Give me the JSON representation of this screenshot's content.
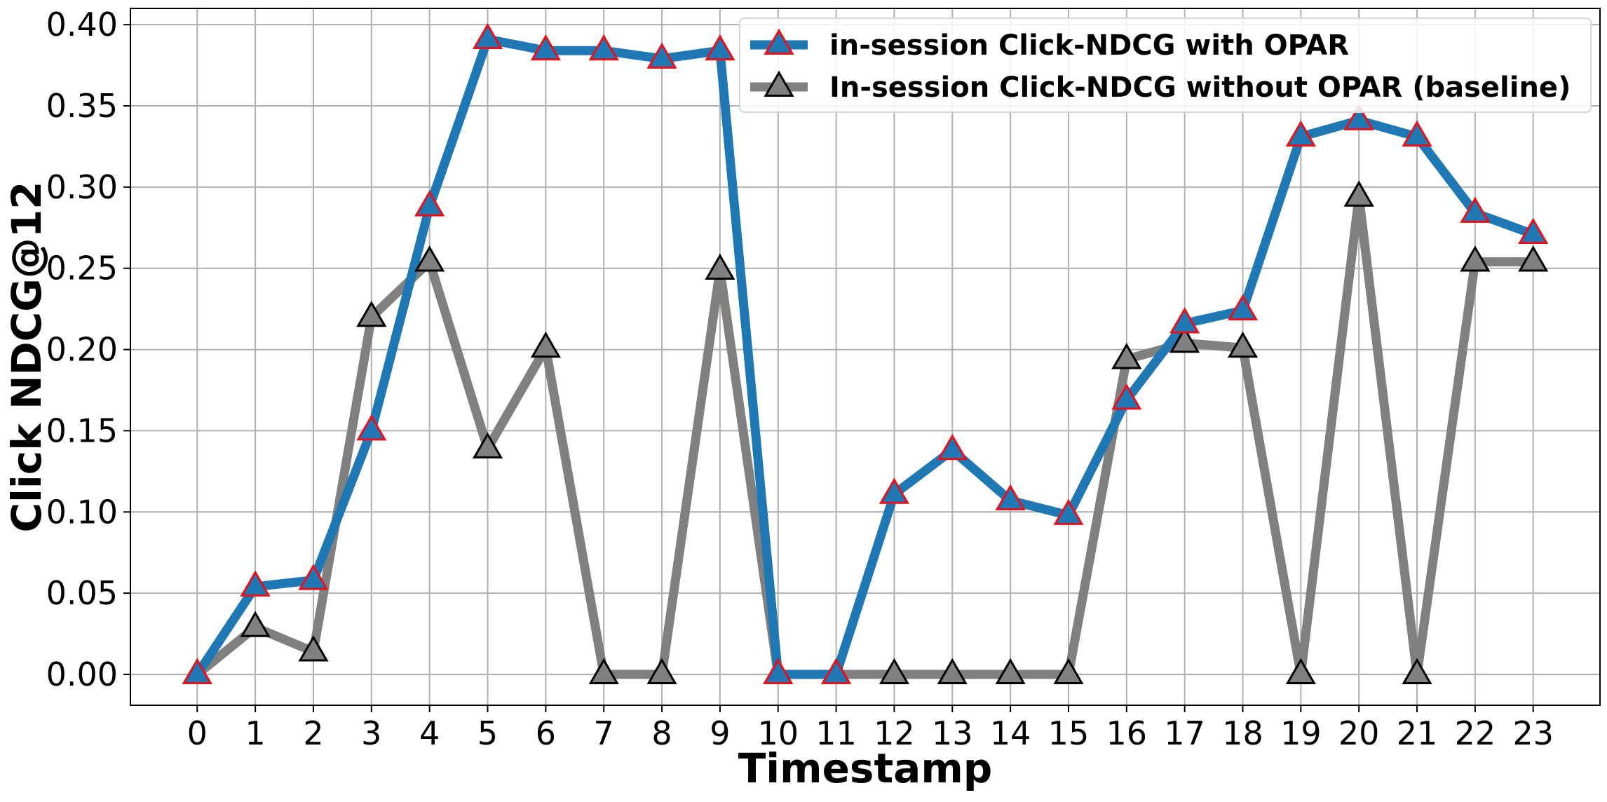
{
  "chart_data": {
    "type": "line",
    "title": "",
    "xlabel": "Timestamp",
    "ylabel": "Click NDCG@12",
    "x": [
      0,
      1,
      2,
      3,
      4,
      5,
      6,
      7,
      8,
      9,
      10,
      11,
      12,
      13,
      14,
      15,
      16,
      17,
      18,
      19,
      20,
      21,
      22,
      23
    ],
    "xticks": [
      "0",
      "1",
      "2",
      "3",
      "4",
      "5",
      "6",
      "7",
      "8",
      "9",
      "10",
      "11",
      "12",
      "13",
      "14",
      "15",
      "16",
      "17",
      "18",
      "19",
      "20",
      "21",
      "22",
      "23"
    ],
    "yticks": [
      "0.00",
      "0.05",
      "0.10",
      "0.15",
      "0.20",
      "0.25",
      "0.30",
      "0.35",
      "0.40"
    ],
    "ylim": [
      -0.019,
      0.41
    ],
    "xlim": [
      -1.15,
      24.15
    ],
    "grid": true,
    "legend_position": "upper-right",
    "series": [
      {
        "name": "in-session Click-NDCG with OPAR",
        "color": "#1f77b4",
        "marker": "triangle-up",
        "marker_fill": "#1f77b4",
        "marker_edge": "#e8101a",
        "values": [
          0.0,
          0.054,
          0.058,
          0.15,
          0.288,
          0.391,
          0.384,
          0.384,
          0.379,
          0.384,
          0.0,
          0.0,
          0.111,
          0.138,
          0.107,
          0.098,
          0.169,
          0.216,
          0.224,
          0.331,
          0.341,
          0.331,
          0.284,
          0.271
        ]
      },
      {
        "name": "In-session Click-NDCG without OPAR (baseline)",
        "color": "#808080",
        "marker": "triangle-up",
        "marker_fill": "#808080",
        "marker_edge": "#000000",
        "values": [
          0.0,
          0.029,
          0.014,
          0.22,
          0.254,
          0.139,
          0.201,
          0.0,
          0.0,
          0.249,
          0.0,
          0.0,
          0.0,
          0.0,
          0.0,
          0.0,
          0.194,
          0.204,
          0.201,
          0.0,
          0.294,
          0.0,
          0.254,
          0.254
        ]
      }
    ]
  }
}
